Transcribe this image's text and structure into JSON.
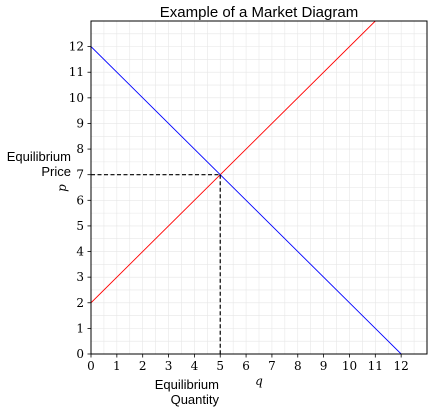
{
  "chart_data": {
    "type": "line",
    "title": "Example of a Market Diagram",
    "xlabel": "q",
    "ylabel": "p",
    "xlim": [
      0,
      13
    ],
    "ylim": [
      0,
      13
    ],
    "xticks": [
      0,
      1,
      2,
      3,
      4,
      5,
      6,
      7,
      8,
      9,
      10,
      11,
      12
    ],
    "yticks": [
      0,
      1,
      2,
      3,
      4,
      5,
      6,
      7,
      8,
      9,
      10,
      11,
      12
    ],
    "grid": true,
    "series": [
      {
        "color": "#ff0000",
        "x": [
          0,
          11
        ],
        "y": [
          2,
          13
        ]
      },
      {
        "color": "#0000ff",
        "x": [
          0,
          12
        ],
        "y": [
          12,
          0
        ]
      }
    ],
    "equilibrium": {
      "q": 5,
      "p": 7,
      "line_style": "dashed",
      "color": "#000000"
    },
    "annotations": {
      "price": [
        "Equilibrium",
        "Price"
      ],
      "quantity": [
        "Equilibrium",
        "Quantity"
      ]
    }
  }
}
